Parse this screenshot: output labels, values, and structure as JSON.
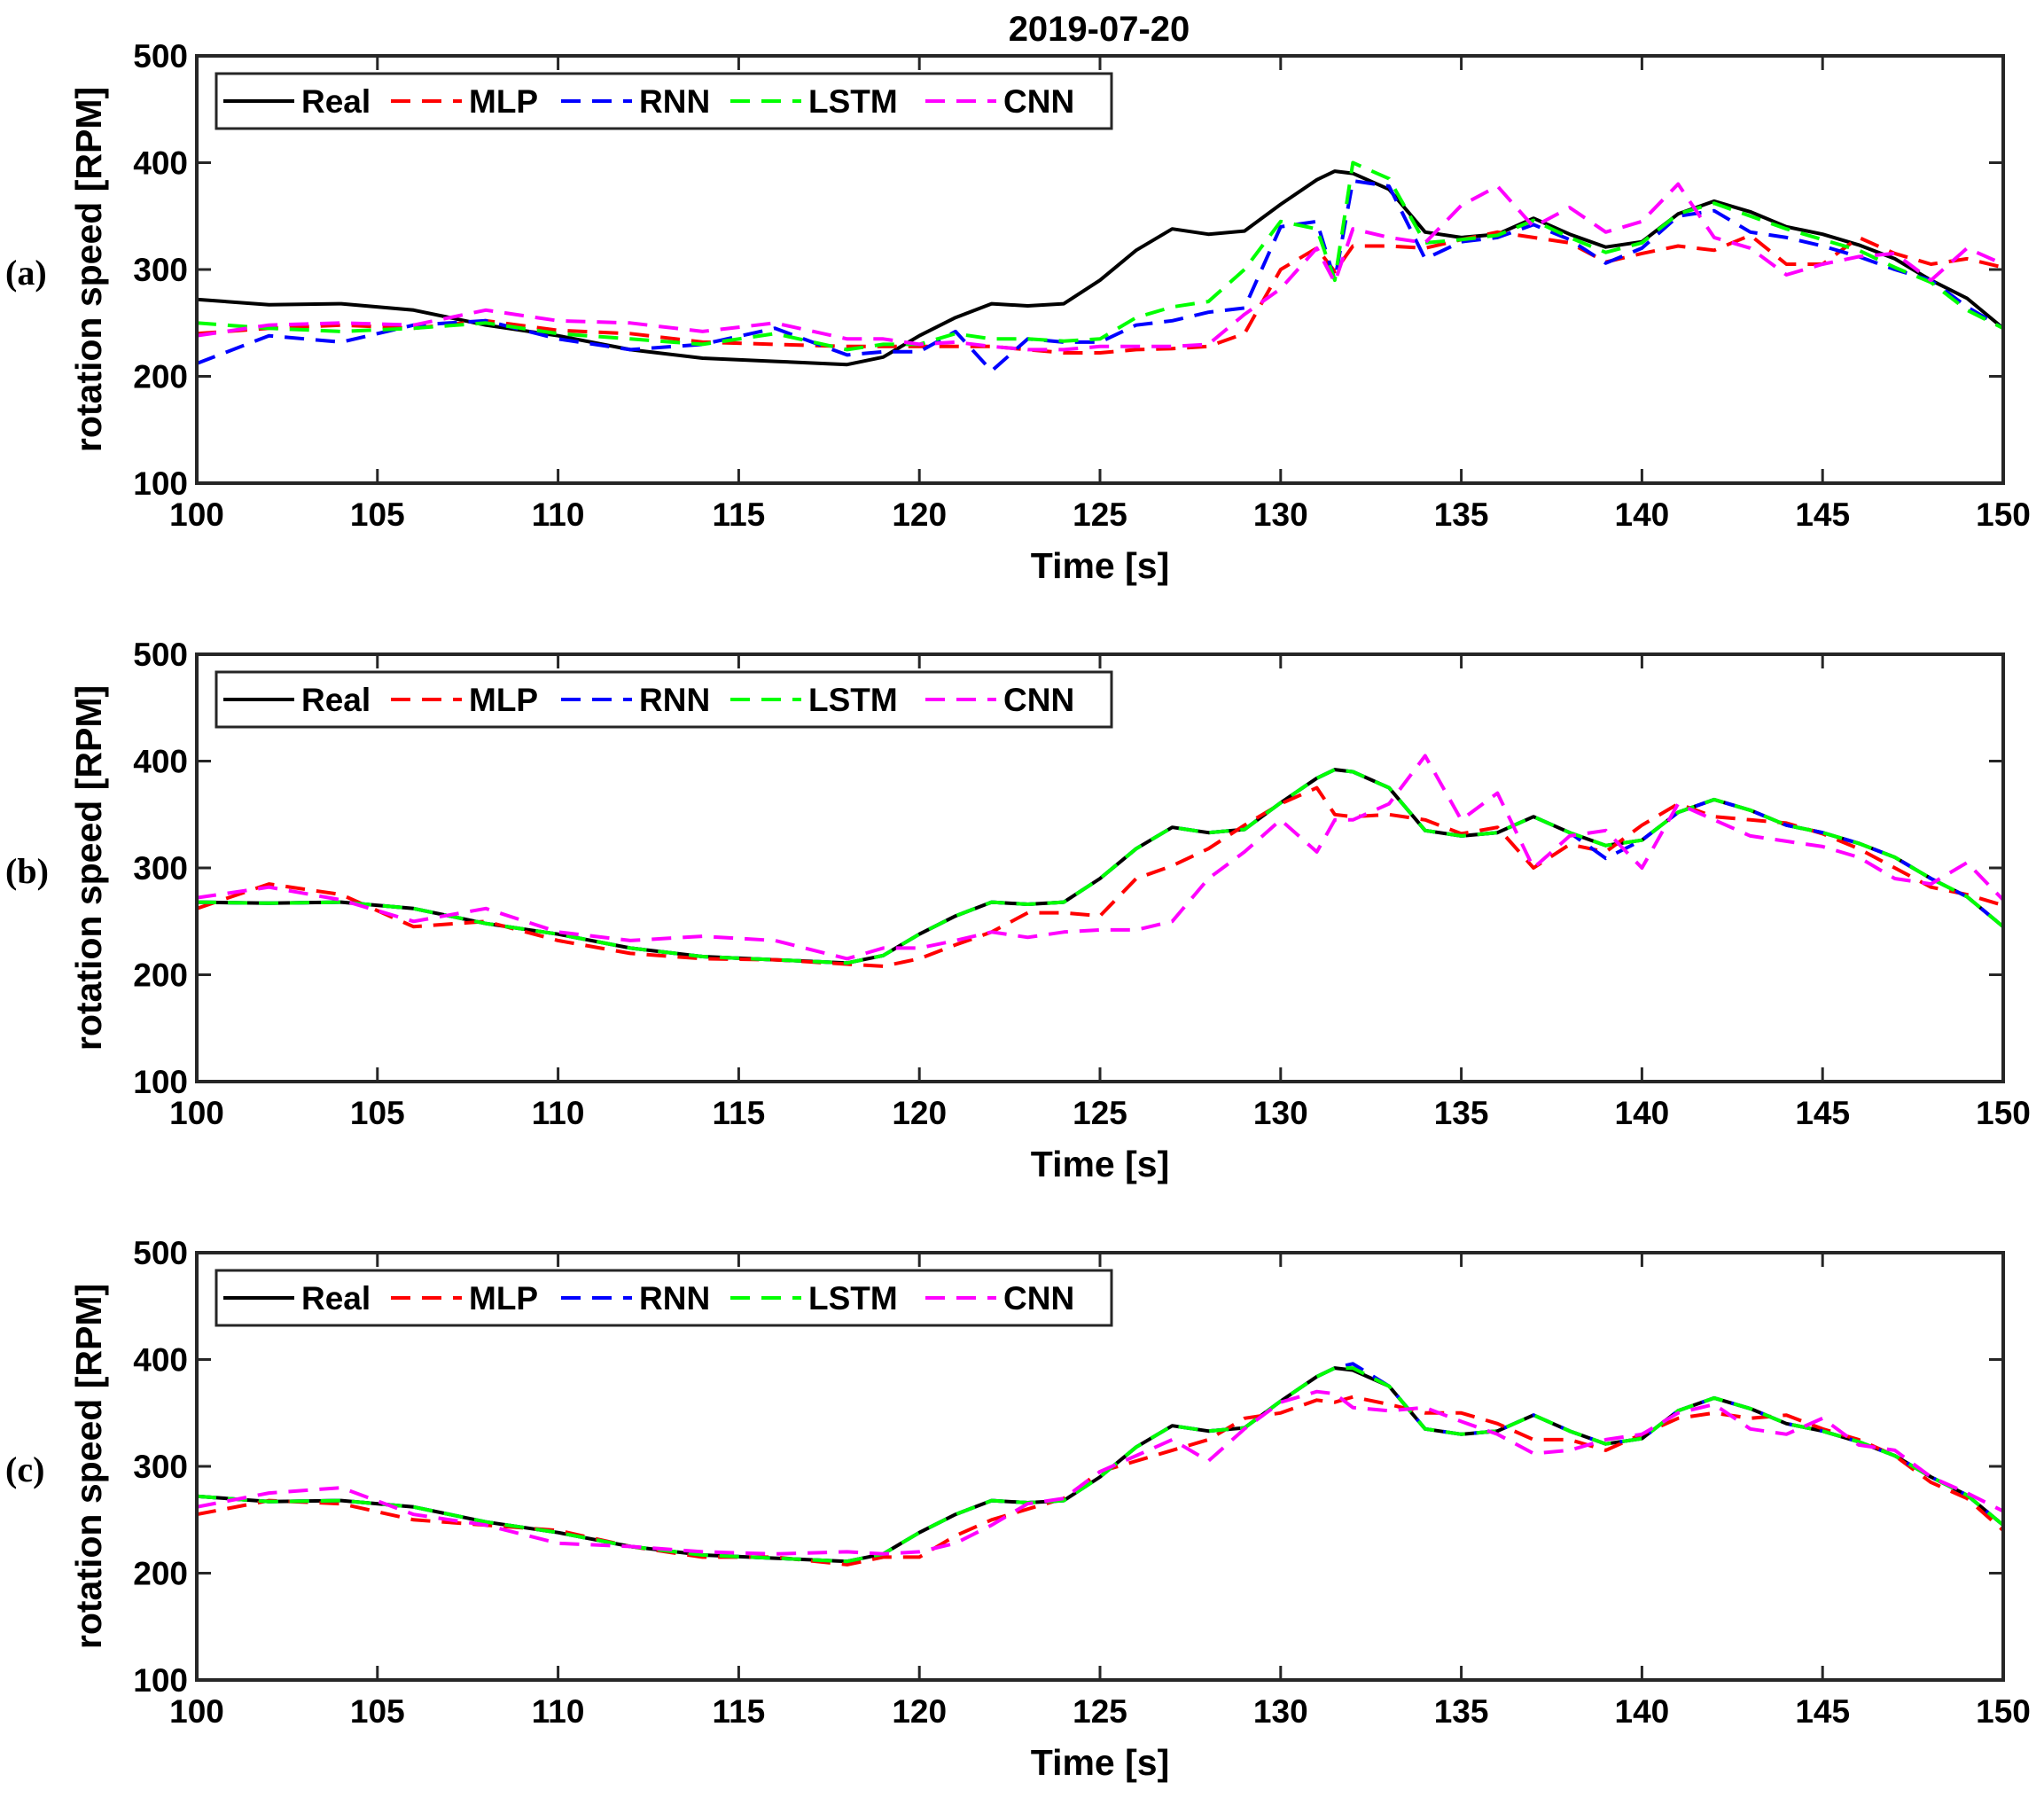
{
  "figure": {
    "title": "2019-07-20"
  },
  "colors": {
    "Real": "#000000",
    "MLP": "#ff0000",
    "RNN": "#0000ff",
    "LSTM": "#00ff00",
    "CNN": "#ff00ff"
  },
  "chart_data": [
    {
      "type": "line",
      "panel_label": "(a)",
      "xlabel": "Time [s]",
      "ylabel": "rotation speed [RPM]",
      "xlim": [
        100,
        150
      ],
      "ylim": [
        100,
        500
      ],
      "xticks": [
        "100",
        "105",
        "110",
        "115",
        "120",
        "125",
        "130",
        "135",
        "140",
        "145",
        "150"
      ],
      "yticks": [
        "100",
        "200",
        "300",
        "400",
        "500"
      ],
      "legend_position": "top-left",
      "x": [
        100,
        102,
        104,
        106,
        108,
        110,
        112,
        114,
        116,
        118,
        119,
        120,
        121,
        122,
        123,
        124,
        125,
        126,
        127,
        128,
        129,
        130,
        131,
        131.5,
        132,
        133,
        134,
        135,
        136,
        137,
        138,
        139,
        140,
        141,
        142,
        143,
        144,
        145,
        146,
        147,
        148,
        149,
        150
      ],
      "series": [
        {
          "name": "Real",
          "style": "solid",
          "values": [
            272,
            267,
            268,
            262,
            248,
            238,
            225,
            217,
            214,
            211,
            218,
            238,
            255,
            268,
            266,
            268,
            290,
            318,
            338,
            333,
            336,
            361,
            384,
            392,
            390,
            375,
            335,
            330,
            333,
            348,
            333,
            321,
            326,
            352,
            364,
            354,
            340,
            333,
            323,
            310,
            290,
            273,
            245
          ]
        },
        {
          "name": "MLP",
          "style": "dashed",
          "values": [
            240,
            245,
            248,
            245,
            252,
            243,
            240,
            232,
            230,
            228,
            228,
            228,
            228,
            228,
            225,
            222,
            222,
            225,
            226,
            228,
            240,
            300,
            320,
            298,
            322,
            322,
            320,
            328,
            335,
            330,
            325,
            307,
            315,
            322,
            318,
            332,
            305,
            305,
            330,
            315,
            305,
            310,
            302
          ]
        },
        {
          "name": "RNN",
          "style": "dashed",
          "values": [
            212,
            238,
            232,
            248,
            252,
            235,
            225,
            230,
            245,
            220,
            223,
            223,
            242,
            205,
            235,
            232,
            232,
            248,
            252,
            260,
            264,
            340,
            345,
            290,
            383,
            378,
            310,
            326,
            330,
            342,
            328,
            306,
            320,
            350,
            355,
            335,
            330,
            322,
            312,
            300,
            290,
            265,
            245
          ]
        },
        {
          "name": "LSTM",
          "style": "dashed",
          "values": [
            250,
            245,
            242,
            245,
            250,
            240,
            235,
            230,
            240,
            225,
            230,
            230,
            240,
            235,
            235,
            233,
            235,
            255,
            265,
            270,
            300,
            345,
            338,
            290,
            400,
            385,
            325,
            328,
            332,
            346,
            330,
            316,
            325,
            352,
            362,
            350,
            338,
            328,
            318,
            302,
            288,
            262,
            245
          ]
        },
        {
          "name": "CNN",
          "style": "dashed",
          "values": [
            238,
            248,
            250,
            248,
            262,
            252,
            250,
            242,
            250,
            235,
            235,
            230,
            232,
            228,
            225,
            225,
            228,
            228,
            228,
            230,
            258,
            282,
            320,
            288,
            338,
            330,
            325,
            360,
            378,
            340,
            358,
            335,
            345,
            380,
            330,
            320,
            295,
            305,
            312,
            315,
            290,
            320,
            305
          ]
        }
      ]
    },
    {
      "type": "line",
      "panel_label": "(b)",
      "xlabel": "Time [s]",
      "ylabel": "rotation speed [RPM]",
      "xlim": [
        100,
        150
      ],
      "ylim": [
        100,
        500
      ],
      "xticks": [
        "100",
        "105",
        "110",
        "115",
        "120",
        "125",
        "130",
        "135",
        "140",
        "145",
        "150"
      ],
      "yticks": [
        "100",
        "200",
        "300",
        "400",
        "500"
      ],
      "legend_position": "top-left",
      "x": [
        100,
        102,
        104,
        106,
        108,
        110,
        112,
        114,
        116,
        118,
        119,
        120,
        121,
        122,
        123,
        124,
        125,
        126,
        127,
        128,
        129,
        130,
        131,
        131.5,
        132,
        133,
        134,
        135,
        136,
        137,
        138,
        139,
        140,
        141,
        142,
        143,
        144,
        145,
        146,
        147,
        148,
        149,
        150
      ],
      "series": [
        {
          "name": "Real",
          "style": "solid",
          "values": [
            268,
            267,
            268,
            262,
            248,
            238,
            225,
            217,
            214,
            211,
            218,
            238,
            255,
            268,
            266,
            268,
            290,
            318,
            338,
            333,
            336,
            361,
            384,
            392,
            390,
            375,
            335,
            330,
            333,
            348,
            333,
            321,
            326,
            352,
            364,
            354,
            340,
            333,
            323,
            310,
            290,
            273,
            245
          ]
        },
        {
          "name": "MLP",
          "style": "dashed",
          "values": [
            262,
            285,
            275,
            245,
            250,
            232,
            220,
            215,
            214,
            210,
            208,
            215,
            228,
            240,
            258,
            258,
            255,
            290,
            302,
            318,
            340,
            360,
            375,
            350,
            348,
            350,
            345,
            332,
            338,
            300,
            322,
            315,
            340,
            360,
            348,
            345,
            342,
            332,
            318,
            300,
            282,
            275,
            265
          ]
        },
        {
          "name": "RNN",
          "style": "dashed",
          "values": [
            268,
            267,
            268,
            262,
            248,
            238,
            225,
            217,
            214,
            211,
            218,
            238,
            255,
            268,
            266,
            268,
            290,
            318,
            338,
            333,
            336,
            361,
            384,
            392,
            390,
            375,
            335,
            330,
            333,
            348,
            333,
            309,
            326,
            352,
            364,
            354,
            340,
            333,
            323,
            310,
            290,
            273,
            245
          ]
        },
        {
          "name": "LSTM",
          "style": "dashed",
          "values": [
            268,
            267,
            268,
            262,
            248,
            238,
            225,
            217,
            214,
            211,
            218,
            238,
            255,
            268,
            266,
            268,
            290,
            318,
            338,
            333,
            336,
            361,
            384,
            392,
            390,
            375,
            335,
            330,
            333,
            348,
            333,
            321,
            326,
            352,
            364,
            354,
            340,
            333,
            323,
            310,
            290,
            273,
            245
          ]
        },
        {
          "name": "CNN",
          "style": "dashed",
          "values": [
            272,
            282,
            270,
            250,
            262,
            240,
            232,
            236,
            232,
            215,
            225,
            225,
            232,
            240,
            235,
            240,
            242,
            242,
            250,
            290,
            315,
            345,
            315,
            345,
            345,
            360,
            405,
            345,
            370,
            300,
            330,
            335,
            300,
            360,
            345,
            330,
            325,
            320,
            310,
            290,
            285,
            305,
            270
          ]
        }
      ]
    },
    {
      "type": "line",
      "panel_label": "(c)",
      "xlabel": "Time [s]",
      "ylabel": "rotation speed [RPM]",
      "xlim": [
        100,
        150
      ],
      "ylim": [
        100,
        500
      ],
      "xticks": [
        "100",
        "105",
        "110",
        "115",
        "120",
        "125",
        "130",
        "135",
        "140",
        "145",
        "150"
      ],
      "yticks": [
        "100",
        "200",
        "300",
        "400",
        "500"
      ],
      "legend_position": "top-left",
      "x": [
        100,
        102,
        104,
        106,
        108,
        110,
        112,
        114,
        116,
        118,
        119,
        120,
        121,
        122,
        123,
        124,
        125,
        126,
        127,
        128,
        129,
        130,
        131,
        131.5,
        132,
        133,
        134,
        135,
        136,
        137,
        138,
        139,
        140,
        141,
        142,
        143,
        144,
        145,
        146,
        147,
        148,
        149,
        150
      ],
      "series": [
        {
          "name": "Real",
          "style": "solid",
          "values": [
            272,
            267,
            268,
            262,
            248,
            238,
            225,
            217,
            214,
            211,
            218,
            238,
            255,
            268,
            266,
            268,
            290,
            318,
            338,
            333,
            336,
            361,
            384,
            392,
            390,
            375,
            335,
            330,
            333,
            348,
            333,
            321,
            326,
            352,
            364,
            354,
            340,
            333,
            323,
            310,
            290,
            273,
            245
          ]
        },
        {
          "name": "MLP",
          "style": "dashed",
          "values": [
            255,
            268,
            265,
            250,
            245,
            240,
            225,
            215,
            215,
            208,
            215,
            215,
            235,
            250,
            260,
            270,
            295,
            305,
            315,
            325,
            345,
            350,
            362,
            360,
            365,
            358,
            350,
            350,
            340,
            325,
            325,
            315,
            330,
            345,
            350,
            345,
            348,
            335,
            325,
            310,
            285,
            270,
            240
          ]
        },
        {
          "name": "RNN",
          "style": "dashed",
          "values": [
            272,
            267,
            268,
            262,
            248,
            238,
            225,
            217,
            214,
            211,
            218,
            238,
            255,
            268,
            266,
            268,
            290,
            318,
            338,
            333,
            336,
            361,
            384,
            392,
            396,
            375,
            335,
            330,
            333,
            348,
            333,
            321,
            326,
            352,
            364,
            354,
            340,
            333,
            323,
            310,
            290,
            273,
            245
          ]
        },
        {
          "name": "LSTM",
          "style": "dashed",
          "values": [
            272,
            267,
            268,
            262,
            248,
            238,
            225,
            217,
            214,
            211,
            218,
            238,
            255,
            268,
            266,
            268,
            290,
            318,
            338,
            333,
            336,
            361,
            384,
            392,
            392,
            375,
            335,
            330,
            333,
            348,
            333,
            321,
            326,
            352,
            364,
            354,
            340,
            333,
            323,
            310,
            290,
            273,
            245
          ]
        },
        {
          "name": "CNN",
          "style": "dashed",
          "values": [
            262,
            275,
            280,
            255,
            245,
            228,
            225,
            220,
            218,
            220,
            218,
            220,
            228,
            245,
            265,
            270,
            295,
            310,
            325,
            305,
            335,
            360,
            370,
            368,
            355,
            352,
            355,
            342,
            330,
            312,
            315,
            325,
            330,
            350,
            358,
            335,
            330,
            345,
            320,
            315,
            290,
            275,
            258
          ]
        }
      ]
    }
  ]
}
